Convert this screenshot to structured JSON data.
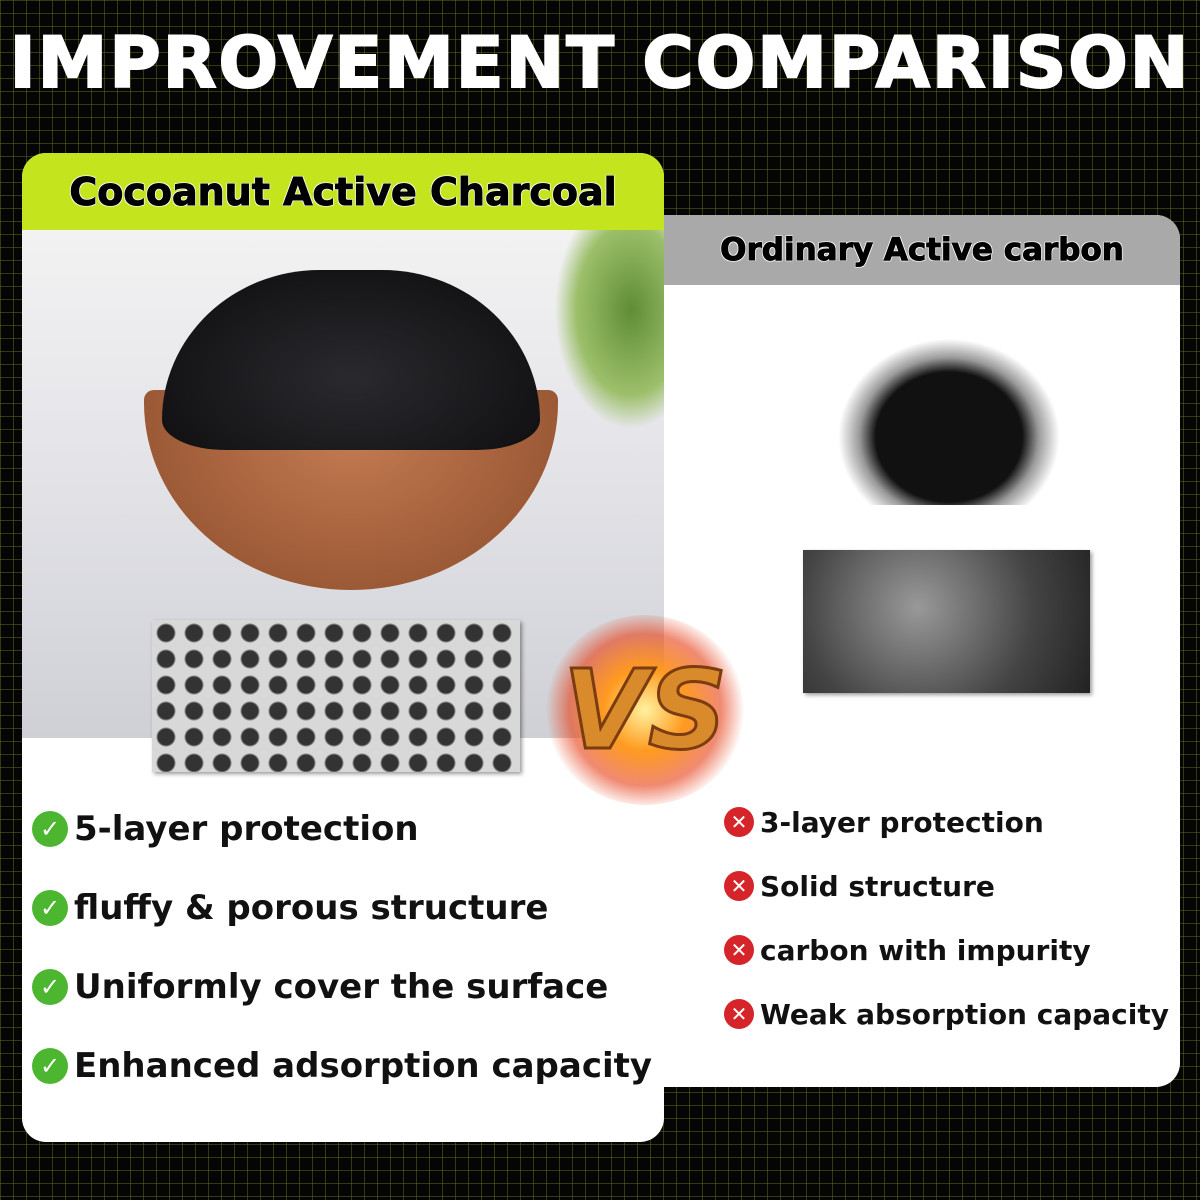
{
  "title": "IMPROVEMENT COMPARISON",
  "vs_label": "VS",
  "left": {
    "heading": "Cocoanut Active Charcoal",
    "accent": "#c4e51e",
    "items": [
      "5-layer protection",
      "fluffy & porous structure",
      "Uniformly cover the surface",
      "Enhanced adsorption capacity"
    ],
    "icon": "check-circle-icon"
  },
  "right": {
    "heading": "Ordinary Active carbon",
    "accent": "#a9a9a9",
    "items": [
      "3-layer protection",
      "Solid structure",
      "carbon with impurity",
      "Weak absorption capacity"
    ],
    "icon": "x-circle-icon"
  },
  "icons": {
    "check": "✓",
    "x": "✕"
  }
}
